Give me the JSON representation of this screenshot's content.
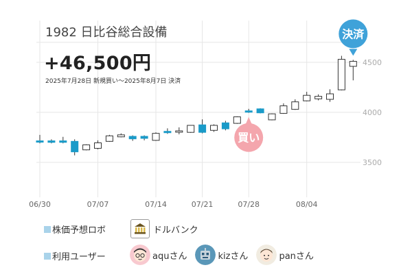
{
  "header": {
    "title": "1982 日比谷総合設備",
    "profit": "+46,500円",
    "period": "2025年7月28日 新規買い〜2025年8月7日 決済"
  },
  "badges": {
    "buy": "買い",
    "settle": "決済"
  },
  "legend": {
    "robo_label": "株価予想ロボ",
    "robo_name": "ドルバンク",
    "users_label": "利用ユーザー",
    "users": [
      {
        "name": "aquさん",
        "icon": "face-glasses-icon"
      },
      {
        "name": "kizさん",
        "icon": "robot-face-icon"
      },
      {
        "name": "panさん",
        "icon": "face-smile-icon"
      }
    ]
  },
  "colors": {
    "up": "#ffffff",
    "down": "#1a9bc9",
    "buy_badge": "#f4a6ad",
    "settle_badge": "#3fa2d9",
    "legend_square": "#a9d3ea"
  },
  "chart_data": {
    "type": "candlestick",
    "y_ticks": [
      3500,
      4000,
      4500
    ],
    "ylim": [
      3100,
      4700
    ],
    "x_tick_labels": [
      {
        "index": 0,
        "label": "06/30"
      },
      {
        "index": 5,
        "label": "07/07"
      },
      {
        "index": 10,
        "label": "07/14"
      },
      {
        "index": 14,
        "label": "07/21"
      },
      {
        "index": 18,
        "label": "07/28"
      },
      {
        "index": 23,
        "label": "08/04"
      }
    ],
    "buy_index": 18,
    "settle_index": 27,
    "candles": [
      {
        "o": 3715,
        "h": 3775,
        "l": 3690,
        "c": 3705
      },
      {
        "o": 3715,
        "h": 3730,
        "l": 3690,
        "c": 3700
      },
      {
        "o": 3715,
        "h": 3755,
        "l": 3690,
        "c": 3700
      },
      {
        "o": 3710,
        "h": 3730,
        "l": 3570,
        "c": 3605
      },
      {
        "o": 3625,
        "h": 3680,
        "l": 3620,
        "c": 3675
      },
      {
        "o": 3640,
        "h": 3720,
        "l": 3630,
        "c": 3695
      },
      {
        "o": 3710,
        "h": 3775,
        "l": 3705,
        "c": 3765
      },
      {
        "o": 3755,
        "h": 3790,
        "l": 3750,
        "c": 3775
      },
      {
        "o": 3760,
        "h": 3770,
        "l": 3715,
        "c": 3735
      },
      {
        "o": 3760,
        "h": 3770,
        "l": 3720,
        "c": 3740
      },
      {
        "o": 3720,
        "h": 3800,
        "l": 3715,
        "c": 3790
      },
      {
        "o": 3810,
        "h": 3840,
        "l": 3785,
        "c": 3800
      },
      {
        "o": 3815,
        "h": 3850,
        "l": 3780,
        "c": 3815
      },
      {
        "o": 3800,
        "h": 3870,
        "l": 3795,
        "c": 3870
      },
      {
        "o": 3875,
        "h": 3930,
        "l": 3790,
        "c": 3800
      },
      {
        "o": 3820,
        "h": 3880,
        "l": 3805,
        "c": 3870
      },
      {
        "o": 3895,
        "h": 3915,
        "l": 3820,
        "c": 3835
      },
      {
        "o": 3890,
        "h": 3960,
        "l": 3885,
        "c": 3955
      },
      {
        "o": 4015,
        "h": 4035,
        "l": 3995,
        "c": 4010
      },
      {
        "o": 4035,
        "h": 4040,
        "l": 3990,
        "c": 3995
      },
      {
        "o": 3925,
        "h": 3990,
        "l": 3920,
        "c": 3985
      },
      {
        "o": 3990,
        "h": 4090,
        "l": 3985,
        "c": 4065
      },
      {
        "o": 4030,
        "h": 4130,
        "l": 4025,
        "c": 4105
      },
      {
        "o": 4115,
        "h": 4205,
        "l": 4110,
        "c": 4170
      },
      {
        "o": 4135,
        "h": 4180,
        "l": 4120,
        "c": 4160
      },
      {
        "o": 4130,
        "h": 4230,
        "l": 4105,
        "c": 4185
      },
      {
        "o": 4225,
        "h": 4565,
        "l": 4220,
        "c": 4530
      },
      {
        "o": 4460,
        "h": 4525,
        "l": 4320,
        "c": 4510
      }
    ]
  }
}
